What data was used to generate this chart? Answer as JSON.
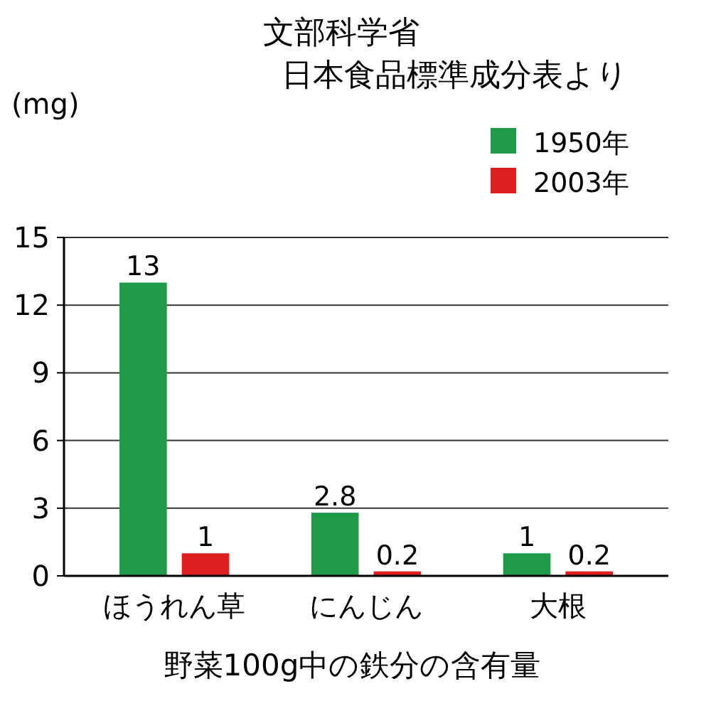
{
  "chart_data": {
    "type": "bar",
    "categories": [
      "ほうれん草",
      "にんじん",
      "大根"
    ],
    "series": [
      {
        "name": "1950年",
        "color": "#1f9a48",
        "values": [
          13,
          2.8,
          1
        ]
      },
      {
        "name": "2003年",
        "color": "#dd1f1f",
        "values": [
          1,
          0.2,
          0.2
        ]
      }
    ],
    "ylim": [
      0,
      15
    ],
    "yticks": [
      0,
      3,
      6,
      9,
      12,
      15
    ],
    "ylabel": "(mg)",
    "xlabel": "野菜100g中の鉄分の含有量",
    "annotations": [
      "文部科学省",
      "日本食品標準成分表より"
    ],
    "grid": "y",
    "legend": "top right",
    "data_labels": true
  }
}
